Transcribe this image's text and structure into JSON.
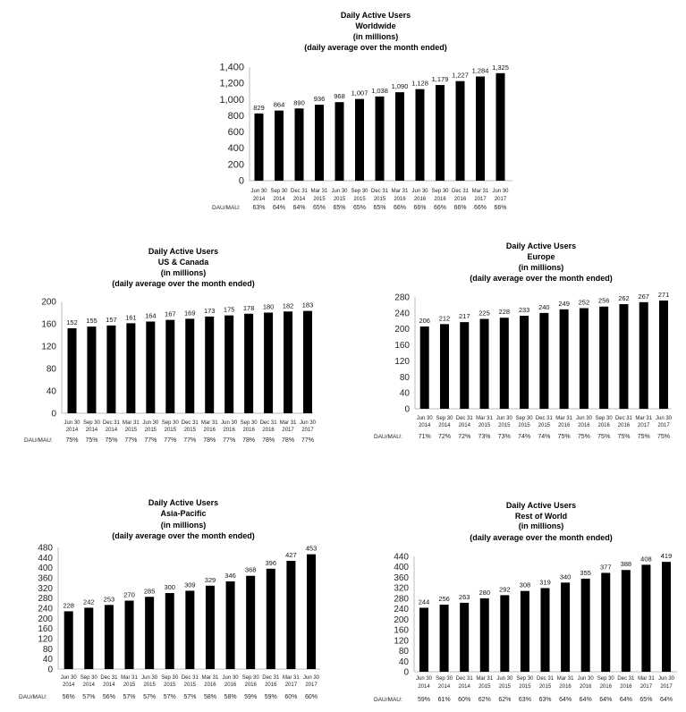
{
  "chart_data": [
    {
      "type": "bar",
      "title": [
        "Daily Active Users",
        "Worldwide",
        "(in millions)",
        "(daily average over the month ended)"
      ],
      "categories": [
        "Jun 30 2014",
        "Sep 30 2014",
        "Dec 31 2014",
        "Mar 31 2015",
        "Jun 30 2015",
        "Sep 30 2015",
        "Dec 31 2015",
        "Mar 31 2016",
        "Jun 30 2016",
        "Sep 30 2016",
        "Dec 31 2016",
        "Mar 31 2017",
        "Jun 30 2017"
      ],
      "values": [
        829,
        864,
        890,
        936,
        968,
        1007,
        1038,
        1090,
        1128,
        1179,
        1227,
        1284,
        1325
      ],
      "value_labels": [
        "829",
        "864",
        "890",
        "936",
        "968",
        "1,007",
        "1,038",
        "1,090",
        "1,128",
        "1,179",
        "1,227",
        "1,284",
        "1,325"
      ],
      "ratio_label": "DAU/MAU:",
      "ratios": [
        "63%",
        "64%",
        "64%",
        "65%",
        "65%",
        "65%",
        "65%",
        "66%",
        "66%",
        "66%",
        "66%",
        "66%",
        "66%"
      ],
      "ylim": [
        0,
        1400
      ],
      "yticks": [
        "0",
        "200",
        "400",
        "600",
        "800",
        "1,000",
        "1,200",
        "1,400"
      ],
      "ytick_values": [
        0,
        200,
        400,
        600,
        800,
        1000,
        1200,
        1400
      ],
      "grid": false,
      "bar_color": "#000000"
    },
    {
      "type": "bar",
      "title": [
        "Daily Active Users",
        "US & Canada",
        "(in millions)",
        "(daily average over the month ended)"
      ],
      "categories": [
        "Jun 30 2014",
        "Sep 30 2014",
        "Dec 31 2014",
        "Mar 31 2015",
        "Jun 30 2015",
        "Sep 30 2015",
        "Dec 31 2015",
        "Mar 31 2016",
        "Jun 30 2016",
        "Sep 30 2016",
        "Dec 31 2016",
        "Mar 31 2017",
        "Jun 30 2017"
      ],
      "values": [
        152,
        155,
        157,
        161,
        164,
        167,
        169,
        173,
        175,
        178,
        180,
        182,
        183
      ],
      "value_labels": [
        "152",
        "155",
        "157",
        "161",
        "164",
        "167",
        "169",
        "173",
        "175",
        "178",
        "180",
        "182",
        "183"
      ],
      "ratio_label": "DAU/MAU:",
      "ratios": [
        "75%",
        "75%",
        "75%",
        "77%",
        "77%",
        "77%",
        "77%",
        "78%",
        "77%",
        "78%",
        "78%",
        "78%",
        "77%"
      ],
      "ylim": [
        0,
        200
      ],
      "yticks": [
        "0",
        "40",
        "80",
        "120",
        "160",
        "200"
      ],
      "ytick_values": [
        0,
        40,
        80,
        120,
        160,
        200
      ],
      "grid": false,
      "bar_color": "#000000"
    },
    {
      "type": "bar",
      "title": [
        "Daily Active Users",
        "Europe",
        "(in millions)",
        "(daily average over the month ended)"
      ],
      "categories": [
        "Jun 30 2014",
        "Sep 30 2014",
        "Dec 31 2014",
        "Mar 31 2015",
        "Jun 30 2015",
        "Sep 30 2015",
        "Dec 31 2015",
        "Mar 31 2016",
        "Jun 30 2016",
        "Sep 30 2016",
        "Dec 31 2016",
        "Mar 31 2017",
        "Jun 30 2017"
      ],
      "values": [
        206,
        212,
        217,
        225,
        228,
        233,
        240,
        249,
        252,
        256,
        262,
        267,
        271
      ],
      "value_labels": [
        "206",
        "212",
        "217",
        "225",
        "228",
        "233",
        "240",
        "249",
        "252",
        "256",
        "262",
        "267",
        "271"
      ],
      "ratio_label": "DAU/MAU:",
      "ratios": [
        "71%",
        "72%",
        "72%",
        "73%",
        "73%",
        "74%",
        "74%",
        "75%",
        "75%",
        "75%",
        "75%",
        "75%",
        "75%"
      ],
      "ylim": [
        0,
        280
      ],
      "yticks": [
        "0",
        "40",
        "80",
        "120",
        "160",
        "200",
        "240",
        "280"
      ],
      "ytick_values": [
        0,
        40,
        80,
        120,
        160,
        200,
        240,
        280
      ],
      "grid": false,
      "bar_color": "#000000"
    },
    {
      "type": "bar",
      "title": [
        "Daily Active Users",
        "Asia-Pacific",
        "(in millions)",
        "(daily average over the month ended)"
      ],
      "categories": [
        "Jun 30 2014",
        "Sep 30 2014",
        "Dec 31 2014",
        "Mar 31 2015",
        "Jun 30 2015",
        "Sep 30 2015",
        "Dec 31 2015",
        "Mar 31 2016",
        "Jun 30 2016",
        "Sep 30 2016",
        "Dec 31 2016",
        "Mar 31 2017",
        "Jun 30 2017"
      ],
      "values": [
        228,
        242,
        253,
        270,
        285,
        300,
        309,
        329,
        346,
        368,
        396,
        427,
        453
      ],
      "value_labels": [
        "228",
        "242",
        "253",
        "270",
        "285",
        "300",
        "309",
        "329",
        "346",
        "368",
        "396",
        "427",
        "453"
      ],
      "ratio_label": "DAU/MAU:",
      "ratios": [
        "56%",
        "57%",
        "56%",
        "57%",
        "57%",
        "57%",
        "57%",
        "58%",
        "58%",
        "59%",
        "59%",
        "60%",
        "60%"
      ],
      "ylim": [
        0,
        480
      ],
      "yticks": [
        "0",
        "40",
        "80",
        "120",
        "160",
        "200",
        "240",
        "280",
        "320",
        "360",
        "400",
        "440",
        "480"
      ],
      "ytick_values": [
        0,
        40,
        80,
        120,
        160,
        200,
        240,
        280,
        320,
        360,
        400,
        440,
        480
      ],
      "grid": false,
      "bar_color": "#000000"
    },
    {
      "type": "bar",
      "title": [
        "Daily Active Users",
        "Rest of World",
        "(in millions)",
        "(daily average over the month ended)"
      ],
      "categories": [
        "Jun 30 2014",
        "Sep 30 2014",
        "Dec 31 2014",
        "Mar 31 2015",
        "Jun 30 2015",
        "Sep 30 2015",
        "Dec 31 2015",
        "Mar 31 2016",
        "Jun 30 2016",
        "Sep 30 2016",
        "Dec 31 2016",
        "Mar 31 2017",
        "Jun 30 2017"
      ],
      "values": [
        244,
        256,
        263,
        280,
        292,
        308,
        319,
        340,
        355,
        377,
        388,
        408,
        419
      ],
      "value_labels": [
        "244",
        "256",
        "263",
        "280",
        "292",
        "308",
        "319",
        "340",
        "355",
        "377",
        "388",
        "408",
        "419"
      ],
      "ratio_label": "DAU/MAU:",
      "ratios": [
        "59%",
        "61%",
        "60%",
        "62%",
        "62%",
        "63%",
        "63%",
        "64%",
        "64%",
        "64%",
        "64%",
        "65%",
        "64%"
      ],
      "ylim": [
        0,
        440
      ],
      "yticks": [
        "0",
        "40",
        "80",
        "120",
        "160",
        "200",
        "240",
        "280",
        "320",
        "360",
        "400",
        "440"
      ],
      "ytick_values": [
        0,
        40,
        80,
        120,
        160,
        200,
        240,
        280,
        320,
        360,
        400,
        440
      ],
      "grid": false,
      "bar_color": "#000000"
    }
  ]
}
